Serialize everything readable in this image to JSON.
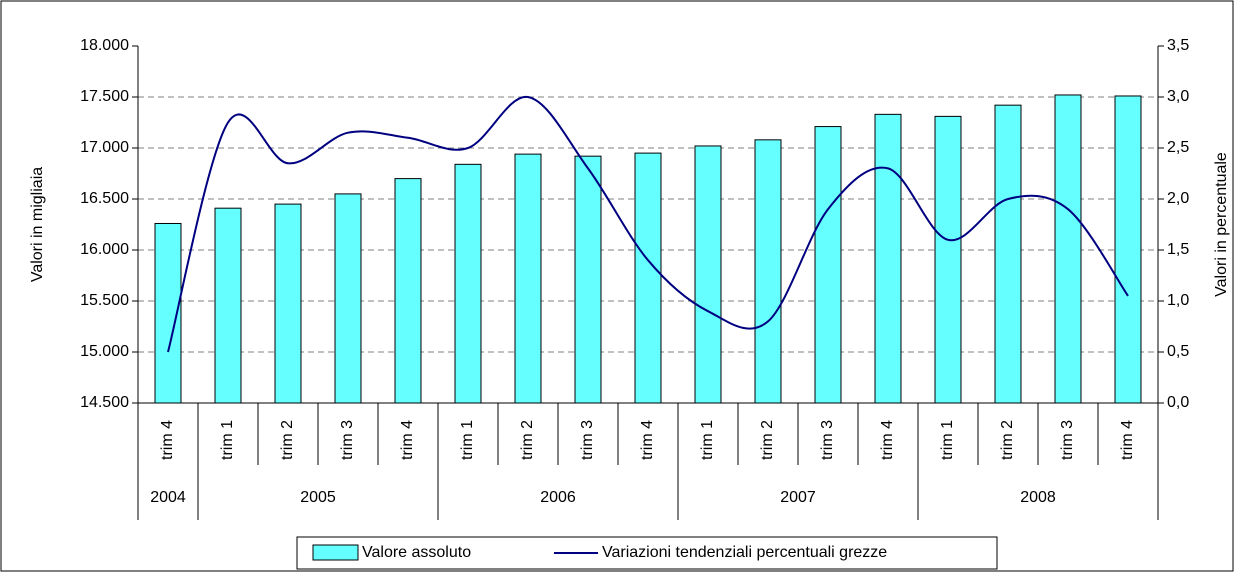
{
  "chart_data": {
    "type": "bar_line",
    "categories": [
      "trim 4",
      "trim 1",
      "trim 2",
      "trim 3",
      "trim 4",
      "trim 1",
      "trim 2",
      "trim 3",
      "trim 4",
      "trim 1",
      "trim 2",
      "trim 3",
      "trim 4",
      "trim 1",
      "trim 2",
      "trim 3",
      "trim 4"
    ],
    "groups": [
      {
        "label": "2004",
        "span": 1
      },
      {
        "label": "2005",
        "span": 4
      },
      {
        "label": "2006",
        "span": 4
      },
      {
        "label": "2007",
        "span": 4
      },
      {
        "label": "2008",
        "span": 4
      }
    ],
    "y_label": "Valori in migliaia",
    "y2_label": "Valori in percentuale",
    "series": [
      {
        "name": "Valore assoluto",
        "color": "#66ffff",
        "type": "bar",
        "values": [
          16260,
          16410,
          16450,
          16550,
          16700,
          16840,
          16940,
          16920,
          16950,
          17020,
          17080,
          17210,
          17330,
          17310,
          17420,
          17520,
          17510
        ]
      },
      {
        "name": "Variazioni tendenziali percentuali grezze",
        "color": "#000080",
        "type": "line",
        "axis": "y2",
        "values": [
          0.5,
          2.75,
          2.35,
          2.65,
          2.6,
          2.5,
          3.0,
          2.3,
          1.4,
          0.9,
          0.8,
          1.9,
          2.3,
          1.6,
          2.0,
          1.9,
          1.05
        ]
      }
    ],
    "ylim": [
      14500,
      18000
    ],
    "yticks": [
      {
        "value": 14500,
        "label": "14.500"
      },
      {
        "value": 15000,
        "label": "15.000"
      },
      {
        "value": 15500,
        "label": "15.500"
      },
      {
        "value": 16000,
        "label": "16.000"
      },
      {
        "value": 16500,
        "label": "16.500"
      },
      {
        "value": 17000,
        "label": "17.000"
      },
      {
        "value": 17500,
        "label": "17.500"
      },
      {
        "value": 18000,
        "label": "18.000"
      }
    ],
    "y2lim": [
      0,
      3.5
    ],
    "y2ticks": [
      {
        "value": 0,
        "label": "0,0"
      },
      {
        "value": 0.5,
        "label": "0,5"
      },
      {
        "value": 1,
        "label": "1,0"
      },
      {
        "value": 1.5,
        "label": "1,5"
      },
      {
        "value": 2,
        "label": "2,0"
      },
      {
        "value": 2.5,
        "label": "2,5"
      },
      {
        "value": 3,
        "label": "3,0"
      },
      {
        "value": 3.5,
        "label": "3,5"
      }
    ],
    "grid": true,
    "legend": "bottom"
  }
}
